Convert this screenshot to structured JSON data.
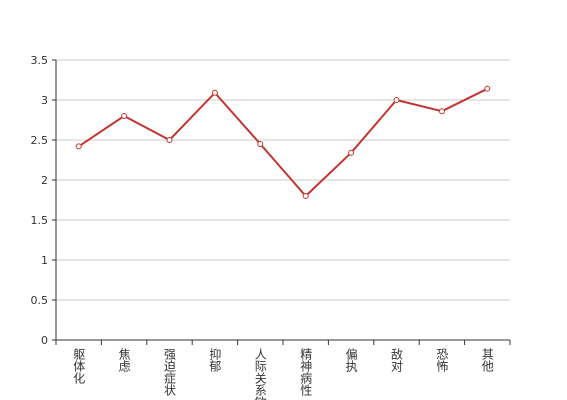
{
  "chart_data": {
    "type": "line",
    "categories": [
      "躯体化",
      "焦虑",
      "强迫症状",
      "抑郁",
      "人际关系敏感",
      "精神病性",
      "偏执",
      "敌对",
      "恐怖",
      "其他"
    ],
    "series": [
      {
        "color": "#c23531",
        "values": [
          2.42,
          2.8,
          2.5,
          3.09,
          2.45,
          1.8,
          2.34,
          3.0,
          2.86,
          3.14
        ]
      }
    ],
    "ylim": [
      0,
      3.5
    ],
    "yticks": [
      0,
      0.5,
      1,
      1.5,
      2,
      2.5,
      3,
      3.5
    ],
    "grid": true
  }
}
